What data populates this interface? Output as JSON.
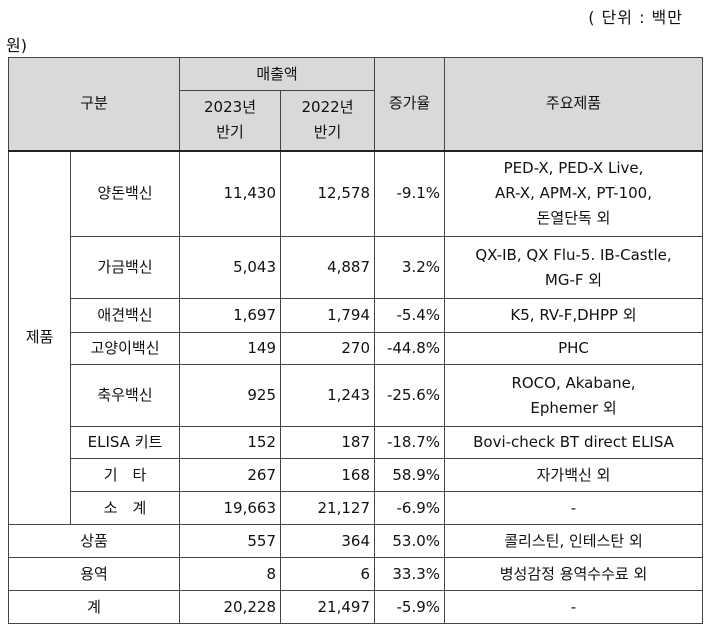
{
  "unit_label_line1": "( 단위 : 백만",
  "unit_label_line2": "원)",
  "header": {
    "category": "구분",
    "sales": "매출액",
    "year_2023": "2023년",
    "year_2022": "2022년",
    "half": "반기",
    "growth": "증가율",
    "products": "주요제품"
  },
  "product_group_label": "제품",
  "product_rows": [
    {
      "name": "양돈백신",
      "v2023": "11,430",
      "v2022": "12,578",
      "growth": "-9.1%",
      "products": [
        "PED-X, PED-X Live,",
        "AR-X, APM-X, PT-100,",
        "돈열단독 외"
      ]
    },
    {
      "name": "가금백신",
      "v2023": "5,043",
      "v2022": "4,887",
      "growth": "3.2%",
      "products": [
        "QX-IB, QX Flu-5. IB-Castle,",
        "MG-F 외"
      ]
    },
    {
      "name": "애견백신",
      "v2023": "1,697",
      "v2022": "1,794",
      "growth": "-5.4%",
      "products": [
        "K5, RV-F,DHPP 외"
      ]
    },
    {
      "name": "고양이백신",
      "v2023": "149",
      "v2022": "270",
      "growth": "-44.8%",
      "products": [
        "PHC"
      ]
    },
    {
      "name": "축우백신",
      "v2023": "925",
      "v2022": "1,243",
      "growth": "-25.6%",
      "products": [
        "ROCO, Akabane,",
        "Ephemer 외"
      ]
    },
    {
      "name": "ELISA 키트",
      "v2023": "152",
      "v2022": "187",
      "growth": "-18.7%",
      "products": [
        "Bovi-check BT direct ELISA"
      ]
    },
    {
      "name": "기　타",
      "v2023": "267",
      "v2022": "168",
      "growth": "58.9%",
      "products": [
        "자가백신 외"
      ]
    },
    {
      "name": "소　계",
      "v2023": "19,663",
      "v2022": "21,127",
      "growth": "-6.9%",
      "products": [
        "-"
      ]
    }
  ],
  "other_rows": [
    {
      "name": "상품",
      "v2023": "557",
      "v2022": "364",
      "growth": "53.0%",
      "products": "콜리스틴, 인테스탄 외"
    },
    {
      "name": "용역",
      "v2023": "8",
      "v2022": "6",
      "growth": "33.3%",
      "products": "병성감정 용역수수료 외"
    },
    {
      "name": "계",
      "v2023": "20,228",
      "v2022": "21,497",
      "growth": "-5.9%",
      "products": "-"
    }
  ]
}
